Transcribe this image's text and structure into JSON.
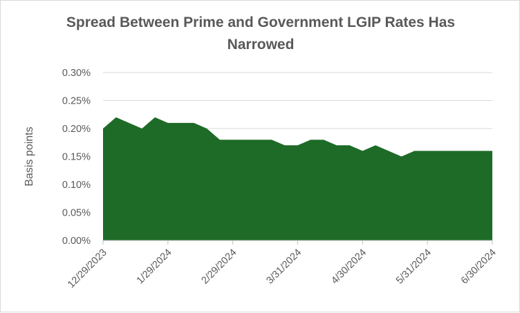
{
  "chart_data": {
    "type": "area",
    "title_lines": [
      "Spread Between Prime and Government LGIP Rates Has",
      "Narrowed"
    ],
    "ylabel": "Basis points",
    "xlabel": "",
    "ylim": [
      0,
      0.3
    ],
    "y_ticks": [
      "0.00%",
      "0.05%",
      "0.10%",
      "0.15%",
      "0.20%",
      "0.25%",
      "0.30%"
    ],
    "x_ticks": [
      {
        "label": "12/29/2023",
        "index": 0
      },
      {
        "label": "1/29/2024",
        "index": 5
      },
      {
        "label": "2/29/2024",
        "index": 10
      },
      {
        "label": "3/31/2024",
        "index": 15
      },
      {
        "label": "4/30/2024",
        "index": 20
      },
      {
        "label": "5/31/2024",
        "index": 25
      },
      {
        "label": "6/30/2024",
        "index": 30
      }
    ],
    "series": [
      {
        "color": "#1e6b27",
        "values": [
          0.2,
          0.22,
          0.21,
          0.2,
          0.22,
          0.21,
          0.21,
          0.21,
          0.2,
          0.18,
          0.18,
          0.18,
          0.18,
          0.18,
          0.17,
          0.17,
          0.18,
          0.18,
          0.17,
          0.17,
          0.16,
          0.17,
          0.16,
          0.15,
          0.16,
          0.16,
          0.16,
          0.16,
          0.16,
          0.16,
          0.16
        ]
      }
    ],
    "grid": true,
    "legend": "none"
  }
}
